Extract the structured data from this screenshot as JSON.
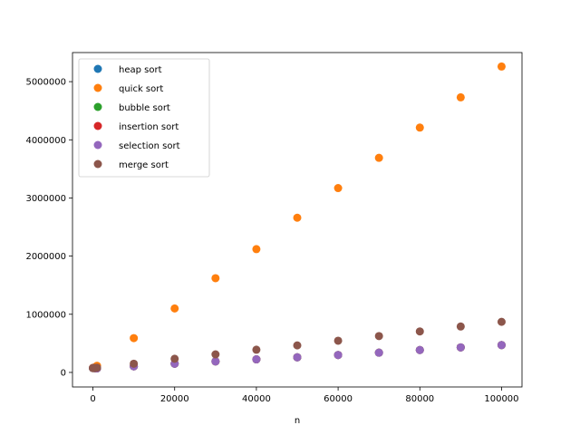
{
  "chart_data": {
    "type": "scatter",
    "title": "",
    "xlabel": "n",
    "ylabel": "",
    "xlim": [
      -5000,
      105000
    ],
    "ylim": [
      -250000,
      5500000
    ],
    "x_ticks": [
      0,
      20000,
      40000,
      60000,
      80000,
      100000
    ],
    "x_tick_labels": [
      "0",
      "20000",
      "40000",
      "60000",
      "80000",
      "100000"
    ],
    "y_ticks": [
      0,
      1000000,
      2000000,
      3000000,
      4000000,
      5000000
    ],
    "y_tick_labels": [
      "0",
      "1000000",
      "2000000",
      "3000000",
      "4000000",
      "5000000"
    ],
    "grid": false,
    "legend_position": "top-left",
    "series": [
      {
        "name": "heap sort",
        "color": "#1f77b4",
        "points": [
          [
            0,
            75000
          ],
          [
            500,
            72000
          ],
          [
            1000,
            70000
          ],
          [
            10000,
            105000
          ],
          [
            20000,
            150000
          ],
          [
            30000,
            190000
          ],
          [
            40000,
            225000
          ],
          [
            50000,
            260000
          ],
          [
            60000,
            300000
          ],
          [
            70000,
            340000
          ],
          [
            80000,
            385000
          ],
          [
            90000,
            430000
          ],
          [
            100000,
            470000
          ]
        ]
      },
      {
        "name": "quick sort",
        "color": "#ff7f0e",
        "points": [
          [
            0,
            80000
          ],
          [
            500,
            90000
          ],
          [
            1000,
            115000
          ],
          [
            10000,
            590000
          ],
          [
            20000,
            1100000
          ],
          [
            30000,
            1620000
          ],
          [
            40000,
            2120000
          ],
          [
            50000,
            2660000
          ],
          [
            60000,
            3170000
          ],
          [
            70000,
            3690000
          ],
          [
            80000,
            4210000
          ],
          [
            90000,
            4730000
          ],
          [
            100000,
            5260000
          ]
        ]
      },
      {
        "name": "bubble sort",
        "color": "#2ca02c",
        "points": [
          [
            0,
            75000
          ],
          [
            500,
            72000
          ],
          [
            1000,
            70000
          ],
          [
            10000,
            105000
          ],
          [
            20000,
            150000
          ],
          [
            30000,
            190000
          ],
          [
            40000,
            225000
          ],
          [
            50000,
            260000
          ],
          [
            60000,
            300000
          ],
          [
            70000,
            340000
          ],
          [
            80000,
            385000
          ],
          [
            90000,
            430000
          ],
          [
            100000,
            470000
          ]
        ]
      },
      {
        "name": "insertion sort",
        "color": "#d62728",
        "points": [
          [
            0,
            75000
          ],
          [
            500,
            72000
          ],
          [
            1000,
            70000
          ],
          [
            10000,
            105000
          ],
          [
            20000,
            150000
          ],
          [
            30000,
            190000
          ],
          [
            40000,
            225000
          ],
          [
            50000,
            260000
          ],
          [
            60000,
            300000
          ],
          [
            70000,
            340000
          ],
          [
            80000,
            385000
          ],
          [
            90000,
            430000
          ],
          [
            100000,
            470000
          ]
        ]
      },
      {
        "name": "selection sort",
        "color": "#9467bd",
        "points": [
          [
            0,
            75000
          ],
          [
            500,
            72000
          ],
          [
            1000,
            70000
          ],
          [
            10000,
            105000
          ],
          [
            20000,
            150000
          ],
          [
            30000,
            190000
          ],
          [
            40000,
            225000
          ],
          [
            50000,
            260000
          ],
          [
            60000,
            300000
          ],
          [
            70000,
            340000
          ],
          [
            80000,
            385000
          ],
          [
            90000,
            430000
          ],
          [
            100000,
            470000
          ]
        ]
      },
      {
        "name": "merge sort",
        "color": "#8c564b",
        "points": [
          [
            0,
            75000
          ],
          [
            500,
            78000
          ],
          [
            1000,
            82000
          ],
          [
            10000,
            150000
          ],
          [
            20000,
            235000
          ],
          [
            30000,
            310000
          ],
          [
            40000,
            390000
          ],
          [
            50000,
            465000
          ],
          [
            60000,
            545000
          ],
          [
            70000,
            625000
          ],
          [
            80000,
            705000
          ],
          [
            90000,
            790000
          ],
          [
            100000,
            870000
          ]
        ]
      }
    ]
  }
}
